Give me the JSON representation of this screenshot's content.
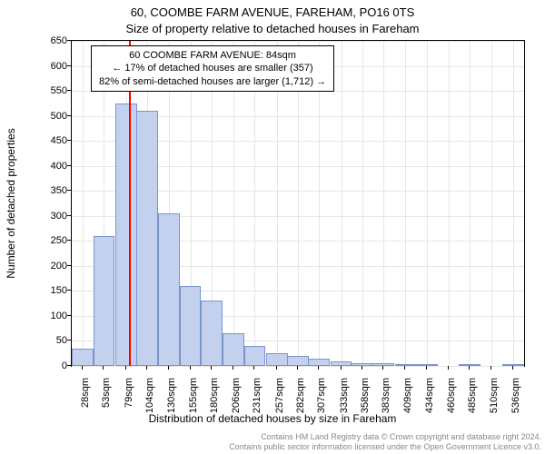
{
  "chart": {
    "type": "histogram",
    "title_line1": "60, COOMBE FARM AVENUE, FAREHAM, PO16 0TS",
    "title_line2": "Size of property relative to detached houses in Fareham",
    "xaxis_label": "Distribution of detached houses by size in Fareham",
    "yaxis_label": "Number of detached properties",
    "title_fontsize": 13,
    "axis_label_fontsize": 12,
    "tick_fontsize": 11,
    "background_color": "#ffffff",
    "grid_color": "#e6e6e6",
    "bar_fill": "#c3d1ee",
    "bar_stroke": "#7a95c9",
    "marker_color": "#ff0000",
    "marker_x": 84,
    "xlim": [
      15,
      549
    ],
    "ylim": [
      0,
      650
    ],
    "xticks": [
      28,
      53,
      79,
      104,
      130,
      155,
      180,
      206,
      231,
      257,
      282,
      307,
      333,
      358,
      383,
      409,
      434,
      460,
      485,
      510,
      536
    ],
    "yticks": [
      0,
      50,
      100,
      150,
      200,
      250,
      300,
      350,
      400,
      450,
      500,
      550,
      600,
      650
    ],
    "xtick_suffix": "sqm",
    "bar_width_data": 25.4,
    "bars": [
      {
        "x": 28,
        "y": 35
      },
      {
        "x": 53,
        "y": 260
      },
      {
        "x": 79,
        "y": 525
      },
      {
        "x": 104,
        "y": 510
      },
      {
        "x": 130,
        "y": 305
      },
      {
        "x": 155,
        "y": 160
      },
      {
        "x": 180,
        "y": 130
      },
      {
        "x": 206,
        "y": 65
      },
      {
        "x": 231,
        "y": 40
      },
      {
        "x": 257,
        "y": 25
      },
      {
        "x": 282,
        "y": 20
      },
      {
        "x": 307,
        "y": 15
      },
      {
        "x": 333,
        "y": 10
      },
      {
        "x": 358,
        "y": 5
      },
      {
        "x": 383,
        "y": 5
      },
      {
        "x": 409,
        "y": 3
      },
      {
        "x": 434,
        "y": 3
      },
      {
        "x": 460,
        "y": 0
      },
      {
        "x": 485,
        "y": 2
      },
      {
        "x": 510,
        "y": 0
      },
      {
        "x": 536,
        "y": 2
      }
    ],
    "annotation": {
      "line1": "60 COOMBE FARM AVENUE: 84sqm",
      "line2": "← 17% of detached houses are smaller (357)",
      "line3": "82% of semi-detached houses are larger (1,712) →"
    },
    "footer_line1": "Contains HM Land Registry data © Crown copyright and database right 2024.",
    "footer_line2": "Contains public sector information licensed under the Open Government Licence v3.0."
  }
}
